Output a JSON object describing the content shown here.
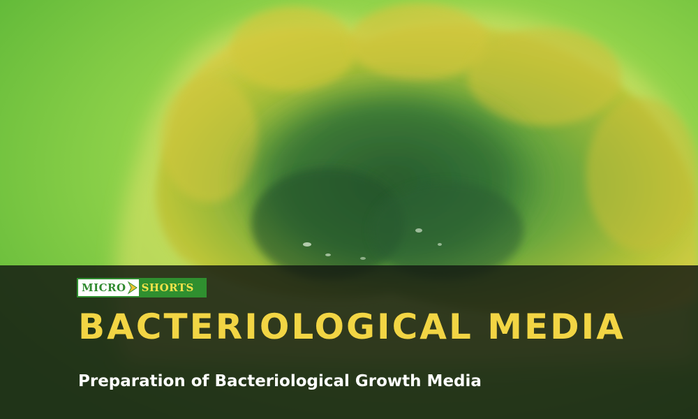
{
  "logo": {
    "left_text": "MICRO",
    "right_text": "SHORTS",
    "icon": "arrow-right-icon"
  },
  "title": "BACTERIOLOGICAL MEDIA",
  "subtitle": "Preparation of Bacteriological Growth Media",
  "colors": {
    "title": "#f2d544",
    "subtitle": "#ffffff",
    "logo_green": "#2f8f2f",
    "background_green": "#7fcf3e",
    "colony_yellow": "#c8c832",
    "overlay": "#141a12"
  }
}
